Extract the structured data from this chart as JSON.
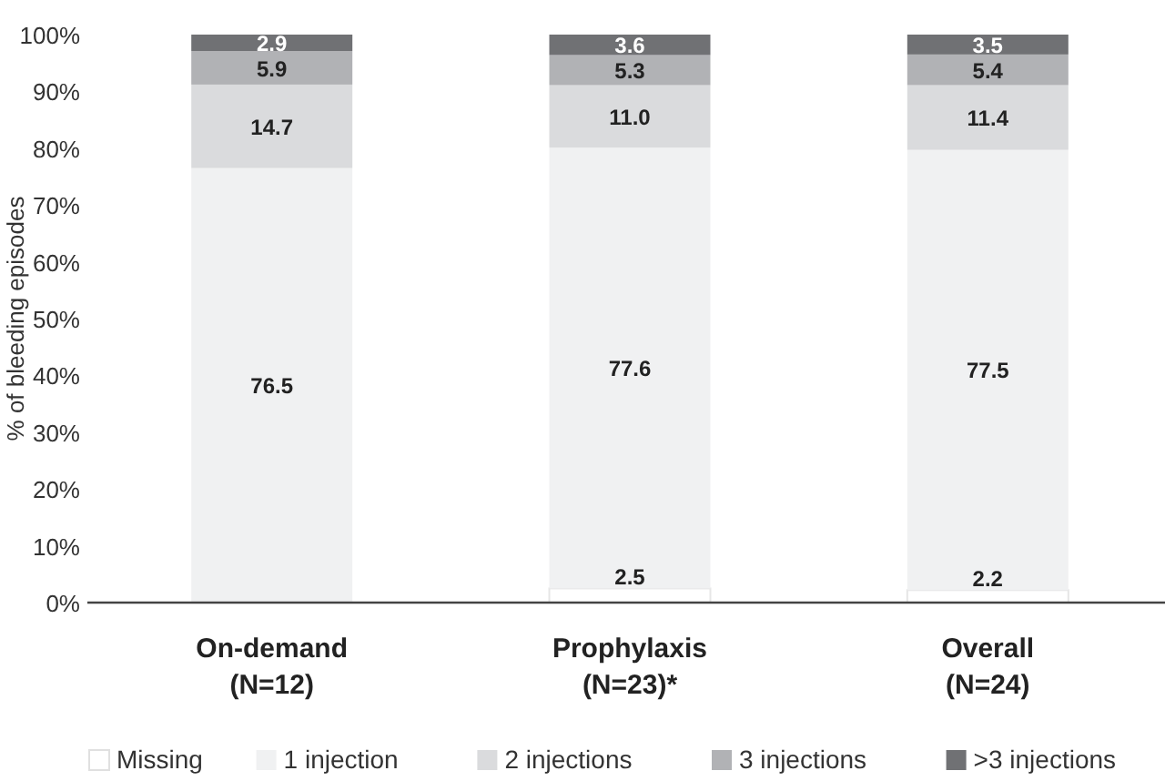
{
  "chart_data": {
    "type": "bar",
    "stacked": true,
    "ylabel": "% of bleeding episodes",
    "categories": [
      "On-demand\n(N=12)",
      "Prophylaxis\n(N=23)*",
      "Overall\n(N=24)"
    ],
    "ylim": [
      0,
      100
    ],
    "yticks": [
      {
        "value": 0,
        "label": "0%"
      },
      {
        "value": 10,
        "label": "10%"
      },
      {
        "value": 20,
        "label": "20%"
      },
      {
        "value": 30,
        "label": "30%"
      },
      {
        "value": 40,
        "label": "40%"
      },
      {
        "value": 50,
        "label": "50%"
      },
      {
        "value": 60,
        "label": "60%"
      },
      {
        "value": 70,
        "label": "70%"
      },
      {
        "value": 80,
        "label": "80%"
      },
      {
        "value": 90,
        "label": "90%"
      },
      {
        "value": 100,
        "label": "100%"
      }
    ],
    "series": [
      {
        "name": "Missing",
        "color": "#ffffff",
        "values": [
          0,
          2.5,
          2.2
        ],
        "value_labels": [
          null,
          "2.5",
          "2.2"
        ]
      },
      {
        "name": "1 injection",
        "color": "#f0f1f2",
        "values": [
          76.5,
          77.6,
          77.5
        ],
        "value_labels": [
          "76.5",
          "77.6",
          "77.5"
        ]
      },
      {
        "name": "2 injections",
        "color": "#dadbdd",
        "values": [
          14.7,
          11.0,
          11.4
        ],
        "value_labels": [
          "14.7",
          "11.0",
          "11.4"
        ]
      },
      {
        "name": "3 injections",
        "color": "#b1b2b5",
        "values": [
          5.9,
          5.3,
          5.4
        ],
        "value_labels": [
          "5.9",
          "5.3",
          "5.4"
        ]
      },
      {
        "name": ">3 injections",
        "color": "#707174",
        "values": [
          2.9,
          3.6,
          3.5
        ],
        "value_labels": [
          "2.9",
          "3.6",
          "3.5"
        ]
      }
    ],
    "grid": false,
    "legend": "bottom"
  }
}
